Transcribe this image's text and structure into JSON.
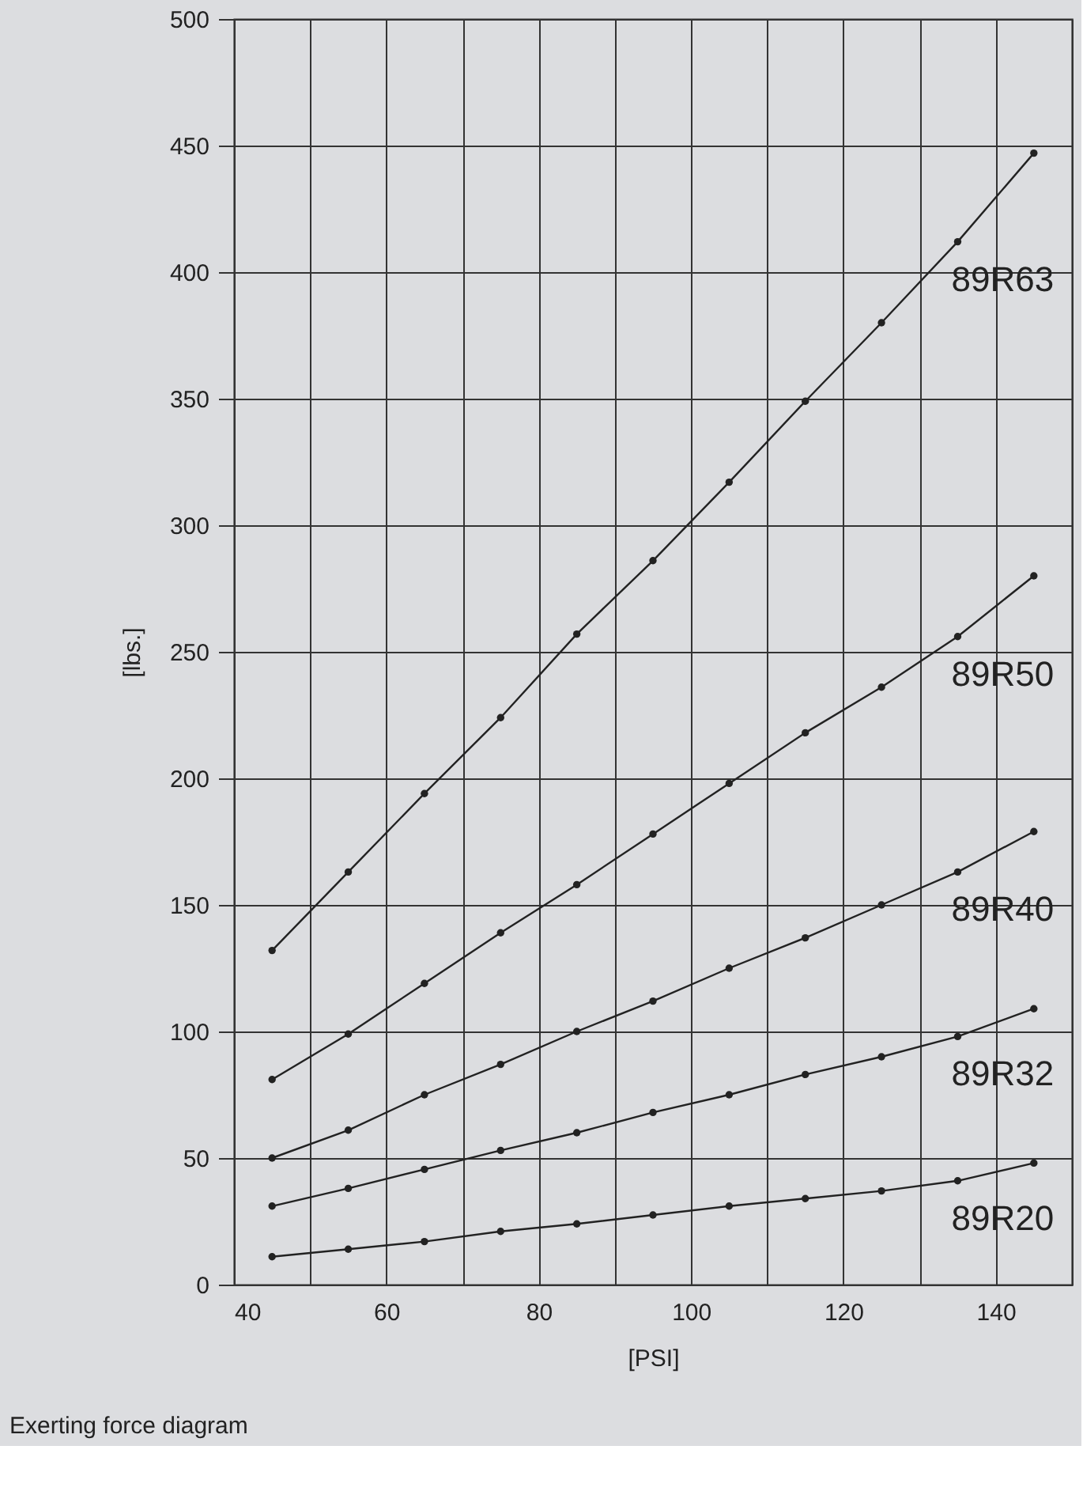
{
  "chart_data": {
    "type": "line",
    "x": [
      45,
      55,
      65,
      75,
      85,
      95,
      105,
      115,
      125,
      135,
      145
    ],
    "series": [
      {
        "name": "89R63",
        "color": "#222222",
        "values": [
          132,
          163,
          194,
          224,
          257,
          286,
          317,
          349,
          380,
          412,
          447
        ]
      },
      {
        "name": "89R50",
        "color": "#222222",
        "values": [
          81,
          99,
          119,
          139,
          158,
          178,
          198,
          218,
          236,
          256,
          280
        ]
      },
      {
        "name": "89R40",
        "color": "#222222",
        "values": [
          50,
          61,
          75,
          87,
          100,
          112,
          125,
          137,
          150,
          163,
          179
        ]
      },
      {
        "name": "89R32",
        "color": "#222222",
        "values": [
          31,
          38,
          45.5,
          53,
          60,
          68,
          75,
          83,
          90,
          98,
          109
        ]
      },
      {
        "name": "89R20",
        "color": "#222222",
        "values": [
          11,
          14,
          17,
          21,
          24,
          27.5,
          31,
          34,
          37,
          41,
          48
        ]
      }
    ],
    "xlabel": "[PSI]",
    "ylabel": "[lbs.]",
    "xlim": [
      40,
      150
    ],
    "xticks": [
      40,
      {
        "value": 50,
        "label": null
      },
      60,
      {
        "value": 70,
        "label": null
      },
      80,
      {
        "value": 90,
        "label": null
      },
      100,
      {
        "value": 110,
        "label": null
      },
      120,
      {
        "value": 130,
        "label": null
      },
      140,
      {
        "value": 150,
        "label": null
      }
    ],
    "ylim": [
      0,
      500
    ],
    "yticks": [
      0,
      50,
      100,
      150,
      200,
      250,
      300,
      350,
      400,
      450,
      500
    ],
    "grid": true,
    "marker": "circle",
    "line_style": "solid",
    "legend": false,
    "annotations": [
      "Exerting force diagram"
    ]
  }
}
